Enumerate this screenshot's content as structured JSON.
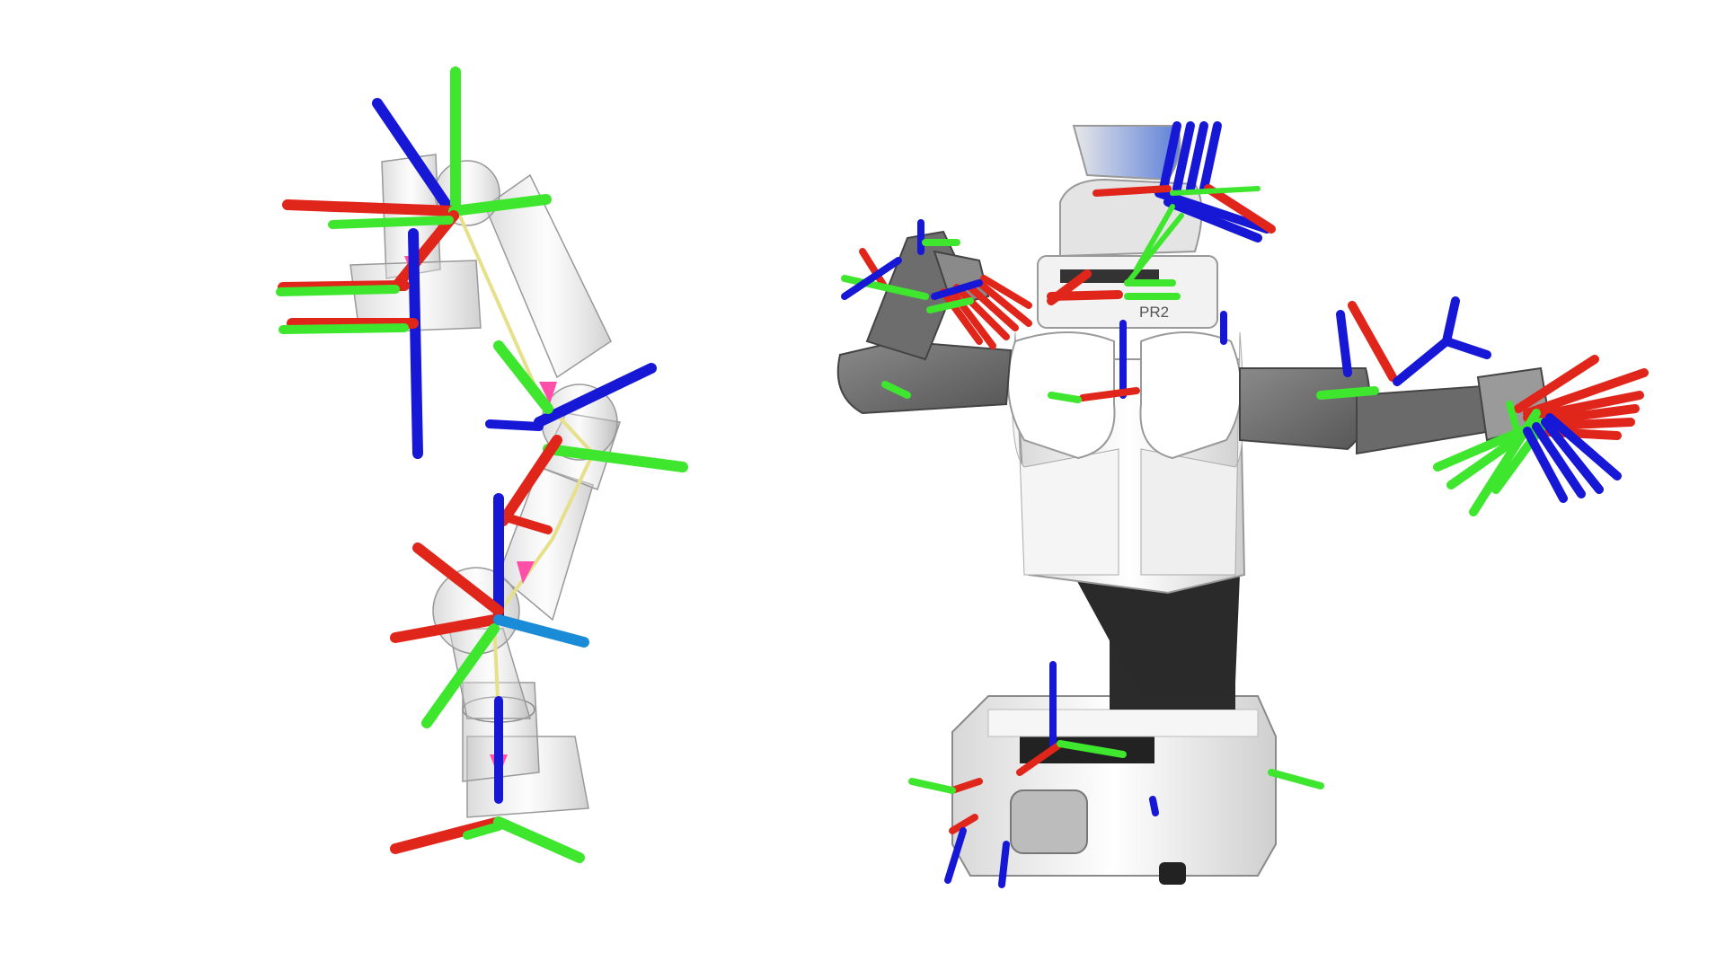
{
  "scene": {
    "background": "#ffffff",
    "robots": [
      {
        "id": "left-arm-robot",
        "type": "robot-arm",
        "rendering": "transparent"
      },
      {
        "id": "right-pr2-robot",
        "type": "mobile-manipulator",
        "label": "PR2"
      }
    ],
    "axis_colors": {
      "x": "#e0261b",
      "y": "#3ee62e",
      "z": "#1717d6"
    },
    "accent_colors": {
      "arrow": "#ff4fa8",
      "chain": "#e6e08a",
      "robot_shell": "#f2f2f2",
      "robot_dark": "#6a6a6a"
    }
  }
}
